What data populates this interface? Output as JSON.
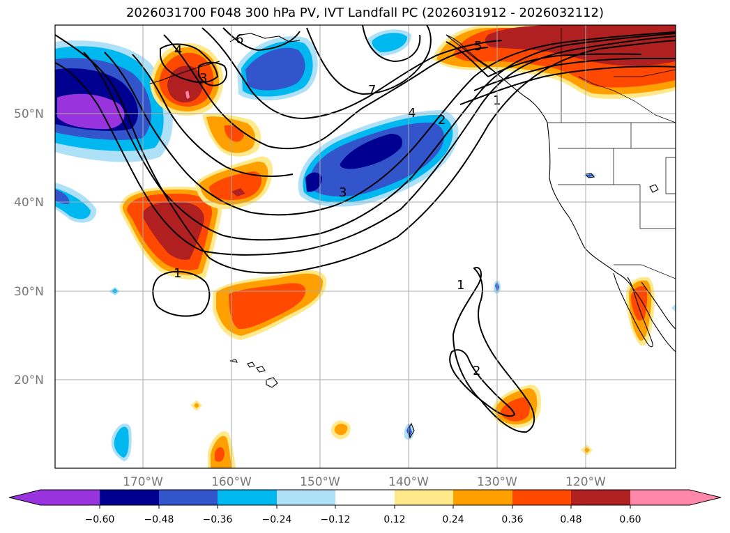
{
  "title": "2026031700 F048 300 hPa PV, IVT Landfall PC (2026031912 - 2026032112)",
  "colors": {
    "purple": "#9933dd",
    "navy": "#000090",
    "royal": "#3355cc",
    "sky": "#00b8f0",
    "pale_blue": "#aee0f8",
    "white": "#ffffff",
    "pale_yellow": "#ffe98a",
    "orange": "#ffa000",
    "red_orange": "#ff4800",
    "dark_red": "#b02020",
    "pink": "#ff88aa"
  },
  "map": {
    "lat_labels": [
      "50°N",
      "40°N",
      "30°N",
      "20°N"
    ],
    "lon_labels": [
      "170°W",
      "160°W",
      "150°W",
      "140°W",
      "130°W",
      "120°W"
    ]
  },
  "colorbar": {
    "ticks": [
      "−0.60",
      "−0.48",
      "−0.36",
      "−0.24",
      "−0.12",
      "0.12",
      "0.24",
      "0.36",
      "0.48",
      "0.60"
    ]
  },
  "contours": {
    "labels": [
      "4",
      "3",
      "6",
      "7",
      "4",
      "2",
      "1",
      "5",
      "3",
      "1",
      "1",
      "2"
    ]
  }
}
